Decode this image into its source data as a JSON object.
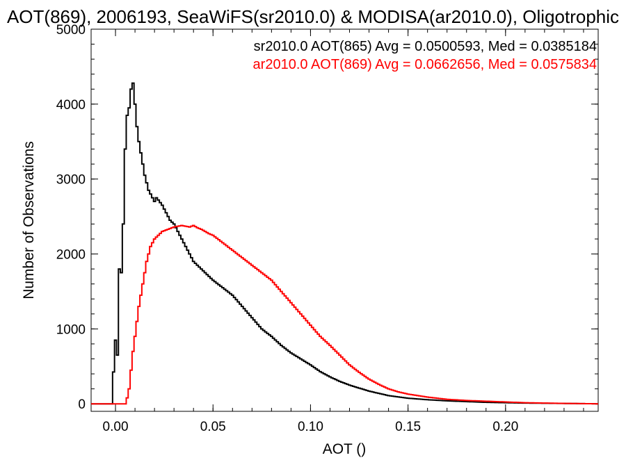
{
  "chart_data": {
    "type": "line",
    "title": "AOT(869), 2006193, SeaWiFS(sr2010.0) & MODISA(ar2010.0), Oligotrophic",
    "xlabel": "AOT ()",
    "ylabel": "Number of Observations",
    "xlim": [
      -0.0125,
      0.2475
    ],
    "ylim": [
      -100,
      5000
    ],
    "xticks": [
      0.0,
      0.05,
      0.1,
      0.15,
      0.2
    ],
    "xtick_labels": [
      "0.00",
      "0.05",
      "0.10",
      "0.15",
      "0.20"
    ],
    "yticks": [
      0,
      1000,
      2000,
      3000,
      4000,
      5000
    ],
    "ytick_labels": [
      "0",
      "1000",
      "2000",
      "3000",
      "4000",
      "5000"
    ],
    "grid": false,
    "step": "histogram",
    "legend_position": "top-right",
    "series": [
      {
        "name": "sr2010.0 AOT(865) Avg = 0.0500593, Med = 0.0385184",
        "color": "#000000",
        "x": [
          -0.002,
          0.0,
          0.001,
          0.002,
          0.003,
          0.004,
          0.005,
          0.006,
          0.007,
          0.008,
          0.009,
          0.01,
          0.011,
          0.012,
          0.013,
          0.014,
          0.015,
          0.016,
          0.017,
          0.018,
          0.019,
          0.02,
          0.021,
          0.022,
          0.024,
          0.026,
          0.028,
          0.03,
          0.032,
          0.034,
          0.036,
          0.038,
          0.04,
          0.042,
          0.044,
          0.046,
          0.048,
          0.05,
          0.055,
          0.06,
          0.065,
          0.07,
          0.075,
          0.08,
          0.085,
          0.09,
          0.095,
          0.1,
          0.105,
          0.11,
          0.115,
          0.12,
          0.125,
          0.13,
          0.135,
          0.14,
          0.15,
          0.16,
          0.17,
          0.18,
          0.19,
          0.2,
          0.21,
          0.22,
          0.23,
          0.24,
          0.2475
        ],
        "values": [
          0,
          850,
          650,
          1800,
          1750,
          2400,
          3400,
          3850,
          3950,
          4200,
          4280,
          4000,
          3700,
          3500,
          3350,
          3200,
          3050,
          2950,
          2850,
          2800,
          2750,
          2700,
          2750,
          2720,
          2650,
          2550,
          2450,
          2400,
          2300,
          2200,
          2100,
          2000,
          1900,
          1850,
          1800,
          1750,
          1700,
          1650,
          1550,
          1450,
          1300,
          1150,
          1000,
          900,
          780,
          680,
          600,
          520,
          430,
          360,
          300,
          250,
          210,
          170,
          140,
          110,
          75,
          55,
          40,
          30,
          20,
          15,
          10,
          8,
          5,
          3,
          0
        ]
      },
      {
        "name": "ar2010.0 AOT(869) Avg = 0.0662656, Med = 0.0575834",
        "color": "#ff0000",
        "x": [
          -0.002,
          0.0,
          0.005,
          0.006,
          0.007,
          0.008,
          0.009,
          0.01,
          0.011,
          0.012,
          0.013,
          0.014,
          0.015,
          0.016,
          0.017,
          0.018,
          0.02,
          0.022,
          0.024,
          0.026,
          0.028,
          0.03,
          0.032,
          0.034,
          0.036,
          0.038,
          0.04,
          0.042,
          0.044,
          0.046,
          0.048,
          0.05,
          0.055,
          0.06,
          0.065,
          0.07,
          0.075,
          0.08,
          0.085,
          0.09,
          0.095,
          0.1,
          0.105,
          0.11,
          0.115,
          0.12,
          0.125,
          0.13,
          0.135,
          0.14,
          0.145,
          0.15,
          0.155,
          0.16,
          0.165,
          0.17,
          0.18,
          0.19,
          0.2,
          0.21,
          0.22,
          0.23,
          0.24,
          0.2475
        ],
        "values": [
          0,
          0,
          0,
          80,
          200,
          450,
          700,
          900,
          1100,
          1300,
          1450,
          1600,
          1750,
          1900,
          2000,
          2100,
          2200,
          2250,
          2300,
          2320,
          2340,
          2360,
          2370,
          2380,
          2370,
          2360,
          2380,
          2350,
          2330,
          2300,
          2270,
          2250,
          2150,
          2050,
          1950,
          1850,
          1750,
          1650,
          1500,
          1350,
          1200,
          1050,
          900,
          780,
          650,
          520,
          420,
          330,
          260,
          200,
          160,
          130,
          110,
          90,
          75,
          60,
          45,
          35,
          25,
          15,
          10,
          6,
          3,
          0
        ]
      }
    ]
  }
}
